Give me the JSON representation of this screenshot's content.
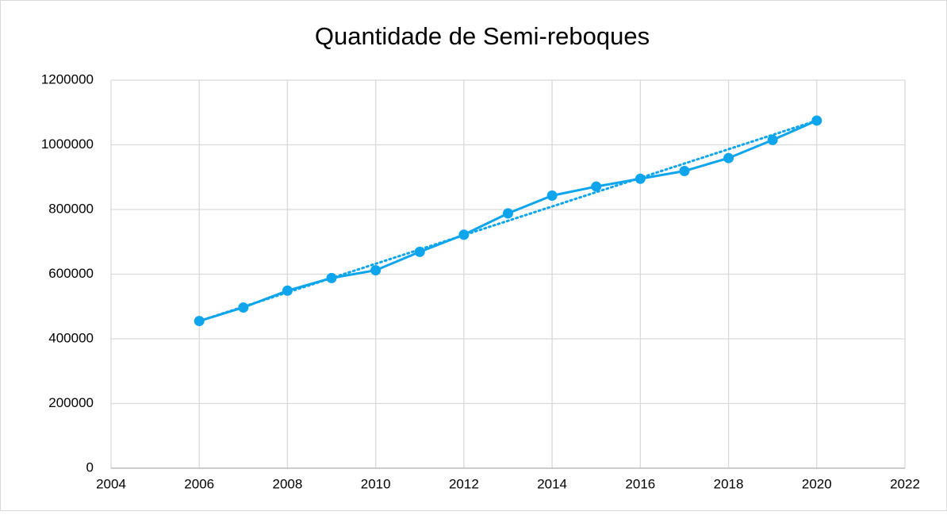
{
  "chart_data": {
    "type": "line",
    "title": "Quantidade de Semi-reboques",
    "x": [
      2006,
      2007,
      2008,
      2009,
      2010,
      2011,
      2012,
      2013,
      2014,
      2015,
      2016,
      2017,
      2018,
      2019,
      2020
    ],
    "series": [
      {
        "name": "Semi-reboques",
        "color": "#0ea5ec",
        "values": [
          455000,
          497000,
          549000,
          588000,
          612000,
          669000,
          722000,
          788000,
          843000,
          871000,
          895000,
          919000,
          959000,
          1015000,
          1075000
        ]
      }
    ],
    "trendline": {
      "x": [
        2006,
        2020
      ],
      "values": [
        455000,
        1075000
      ],
      "color": "#0ea5ec"
    },
    "xlim": [
      2004,
      2022
    ],
    "xticks": [
      2004,
      2006,
      2008,
      2010,
      2012,
      2014,
      2016,
      2018,
      2020,
      2022
    ],
    "ylim": [
      0,
      1200000
    ],
    "yticks": [
      0,
      200000,
      400000,
      600000,
      800000,
      1000000,
      1200000
    ],
    "grid": true
  }
}
